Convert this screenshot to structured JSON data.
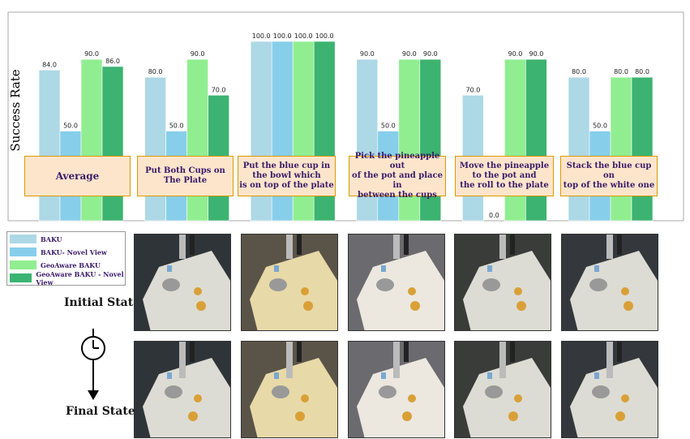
{
  "chart_data": {
    "type": "bar",
    "ylabel": "Success Rate",
    "ylim": [
      0,
      100
    ],
    "categories": [
      "Average",
      "Put Both Cups on\nThe Plate",
      "Put the blue cup in\nthe bowl which\nis on top of the plate",
      "Pick the pineapple out\nof the pot and place in\nbetween the cups",
      "Move the pineapple\nto the pot and\nthe roll to the plate",
      "Stack the blue cup on\ntop of the white one"
    ],
    "series": [
      {
        "name": "BAKU",
        "color": "#add8e6",
        "values": [
          84,
          80,
          100,
          90,
          70,
          80
        ]
      },
      {
        "name": "BAKU- Novel View",
        "color": "#87ceeb",
        "values": [
          50,
          50,
          100,
          50,
          0,
          50
        ]
      },
      {
        "name": "GeoAware BAKU",
        "color": "#90ee90",
        "values": [
          90,
          90,
          100,
          90,
          90,
          80
        ]
      },
      {
        "name": "GeoAware BAKU - Novel View",
        "color": "#3cb371",
        "values": [
          86,
          70,
          100,
          90,
          90,
          80
        ]
      }
    ],
    "legend": "bottom-left, outside"
  },
  "states": {
    "initial": "Initial State",
    "final": "Final State"
  }
}
